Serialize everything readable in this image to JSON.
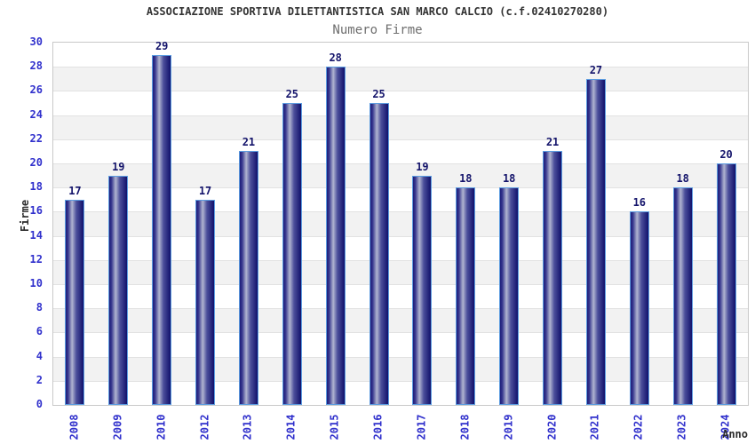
{
  "header": {
    "title": "ASSOCIAZIONE SPORTIVA DILETTANTISTICA SAN MARCO CALCIO (c.f.02410270280)",
    "subtitle": "Numero Firme"
  },
  "chart_data": {
    "type": "bar",
    "title": "ASSOCIAZIONE SPORTIVA DILETTANTISTICA SAN MARCO CALCIO (c.f.02410270280)",
    "subtitle": "Numero Firme",
    "xlabel": "Anno",
    "ylabel": "Firme",
    "categories": [
      "2008",
      "2009",
      "2010",
      "2012",
      "2013",
      "2014",
      "2015",
      "2016",
      "2017",
      "2018",
      "2019",
      "2020",
      "2021",
      "2022",
      "2023",
      "2024"
    ],
    "values": [
      17,
      19,
      29,
      17,
      21,
      25,
      28,
      25,
      19,
      18,
      18,
      21,
      27,
      16,
      18,
      20
    ],
    "ylim": [
      0,
      30
    ],
    "ytick_step": 2,
    "grid": "horizontal alternating bands every 2 units",
    "legend": "none",
    "bar_value_labels": "above each bar",
    "x_tick_rotation": "vertical (reading bottom to top)",
    "colors": {
      "background": "#ffffff",
      "title_color": "#333333",
      "subtitle_color": "#6e6e6e",
      "axis_title_color": "#2b2b2b",
      "tick_label_color": "#3030cc",
      "value_label_color": "#14146b",
      "plot_border": "#c9c9c9",
      "gridline": "#e2e2e2",
      "band_light": "#ffffff",
      "band_gray": "#f2f2f2",
      "bar_border": "#5c9ce0",
      "bar_gradient": [
        "#1d1d7a",
        "#34348c",
        "#b0b4d0",
        "#4c4f9b",
        "#11116b"
      ]
    }
  }
}
